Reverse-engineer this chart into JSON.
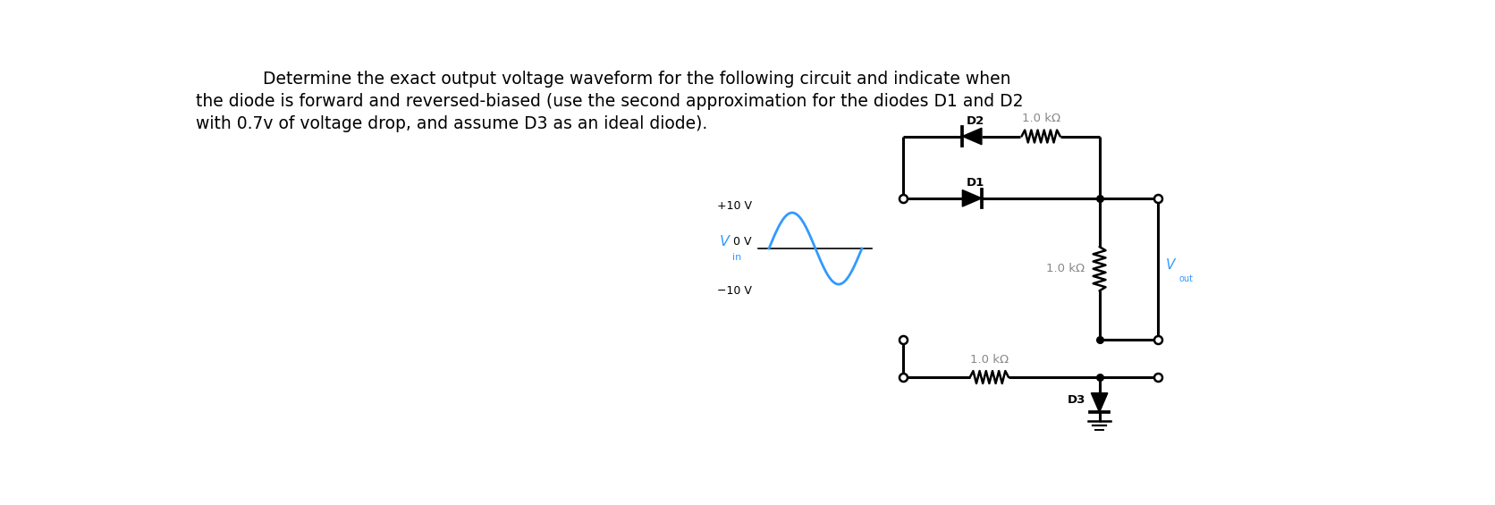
{
  "title_line1": "Determine the exact output voltage waveform for the following circuit and indicate when",
  "title_line2": "the diode is forward and reversed-biased (use the second approximation for the diodes D1 and D2",
  "title_line3": "with 0.7v of voltage drop, and assume D3 as an ideal diode).",
  "title_fontsize": 13.5,
  "label_color_gray": "#888888",
  "label_color_black": "#000000",
  "circuit_color": "#000000",
  "R1_label": "1.0 kΩ",
  "R2_label": "1.0 kΩ",
  "R3_label": "1.0 kΩ",
  "D1_label": "D1",
  "D2_label": "D2",
  "D3_label": "D3",
  "Vout_label": "V",
  "Vout_sub": "out",
  "Vout_color": "#3399ff",
  "vin_color": "#3399ff",
  "Vin_label": "V",
  "Vin_sub": "in",
  "bg_color": "#ffffff"
}
